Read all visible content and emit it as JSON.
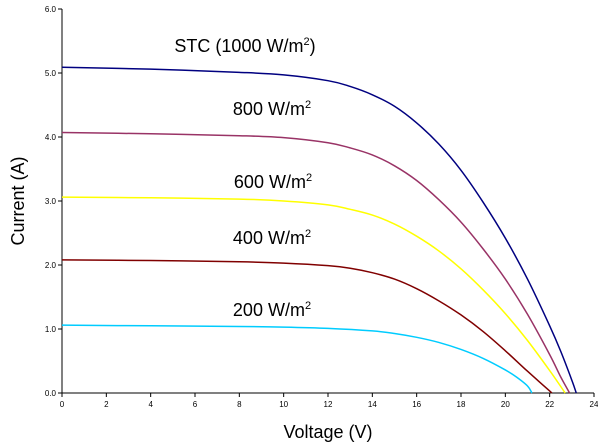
{
  "chart_data": {
    "type": "line",
    "title": "",
    "xlabel": "Voltage (V)",
    "ylabel": "Current (A)",
    "xlim": [
      0,
      24
    ],
    "ylim": [
      0,
      6
    ],
    "x_ticks": [
      "0",
      "2",
      "4",
      "6",
      "8",
      "10",
      "12",
      "14",
      "16",
      "18",
      "20",
      "22",
      "24"
    ],
    "y_ticks": [
      "0.0",
      "1.0",
      "2.0",
      "3.0",
      "4.0",
      "5.0",
      "6.0"
    ],
    "grid": false,
    "legend": "none",
    "series": [
      {
        "name": "STC (1000 W/m2)",
        "label_text": "STC (1000 W/m",
        "label_sup": "2",
        "label_suffix": ")",
        "color": "#000080",
        "x": [
          0,
          4,
          8,
          10,
          12,
          13,
          14,
          15,
          16,
          17,
          18,
          19,
          20,
          21,
          22,
          22.5,
          23,
          23.2
        ],
        "y": [
          5.09,
          5.06,
          5.01,
          4.97,
          4.88,
          4.79,
          4.66,
          4.48,
          4.22,
          3.89,
          3.48,
          2.98,
          2.42,
          1.78,
          1.05,
          0.65,
          0.2,
          0.0
        ]
      },
      {
        "name": "800 W/m2",
        "label_text": "800 W/m",
        "label_sup": "2",
        "label_suffix": "",
        "color": "#993366",
        "x": [
          0,
          4,
          8,
          10,
          12,
          13,
          14,
          15,
          16,
          17,
          18,
          19,
          20,
          21,
          22,
          22.5,
          22.9
        ],
        "y": [
          4.07,
          4.05,
          4.02,
          3.99,
          3.91,
          3.83,
          3.72,
          3.55,
          3.32,
          3.02,
          2.67,
          2.25,
          1.78,
          1.23,
          0.6,
          0.25,
          0.0
        ]
      },
      {
        "name": "600 W/m2",
        "label_text": "600 W/m",
        "label_sup": "2",
        "label_suffix": "",
        "color": "#ffff00",
        "x": [
          0,
          4,
          8,
          10,
          12,
          13,
          14,
          15,
          16,
          17,
          18,
          19,
          20,
          21,
          22,
          22.7
        ],
        "y": [
          3.06,
          3.05,
          3.03,
          3.0,
          2.94,
          2.87,
          2.78,
          2.64,
          2.45,
          2.22,
          1.94,
          1.61,
          1.24,
          0.82,
          0.35,
          0.0
        ]
      },
      {
        "name": "400 W/m2",
        "label_text": "400 W/m",
        "label_sup": "2",
        "label_suffix": "",
        "color": "#800000",
        "x": [
          0,
          4,
          8,
          10,
          12,
          13,
          14,
          15,
          16,
          17,
          18,
          19,
          20,
          21,
          22.1
        ],
        "y": [
          2.08,
          2.07,
          2.05,
          2.03,
          1.99,
          1.95,
          1.88,
          1.78,
          1.63,
          1.44,
          1.22,
          0.96,
          0.66,
          0.34,
          0.0
        ]
      },
      {
        "name": "200 W/m2",
        "label_text": "200 W/m",
        "label_sup": "2",
        "label_suffix": "",
        "color": "#00ccff",
        "x": [
          0,
          4,
          8,
          10,
          12,
          14,
          15,
          16,
          17,
          18,
          19,
          20,
          20.5,
          21,
          21.2
        ],
        "y": [
          1.06,
          1.05,
          1.04,
          1.03,
          1.01,
          0.97,
          0.93,
          0.87,
          0.79,
          0.68,
          0.54,
          0.36,
          0.25,
          0.11,
          0.0
        ]
      }
    ]
  }
}
